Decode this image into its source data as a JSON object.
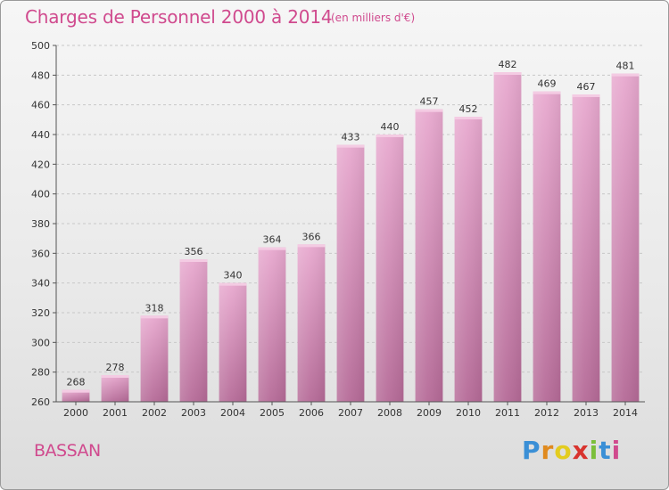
{
  "title": "Charges de Personnel 2000 à 2014",
  "subtitle": "(en milliers d'€)",
  "commune": "BASSAN",
  "brand": {
    "letters": [
      "P",
      "r",
      "o",
      "x",
      "i",
      "t",
      "i"
    ],
    "colors": [
      "#3a8fd6",
      "#e08a1e",
      "#e3cc1f",
      "#d8332e",
      "#7bbf3a",
      "#3a8fd6",
      "#d04a8e"
    ]
  },
  "chart_data": {
    "type": "bar",
    "categories": [
      "2000",
      "2001",
      "2002",
      "2003",
      "2004",
      "2005",
      "2006",
      "2007",
      "2008",
      "2009",
      "2010",
      "2011",
      "2012",
      "2013",
      "2014"
    ],
    "values": [
      268,
      278,
      318,
      356,
      340,
      364,
      366,
      433,
      440,
      457,
      452,
      482,
      469,
      467,
      481
    ],
    "ylim": [
      260,
      500
    ],
    "yticks": [
      260,
      280,
      300,
      320,
      340,
      360,
      380,
      400,
      420,
      440,
      460,
      480,
      500
    ],
    "grid": true,
    "bar_color": "#d97fb2"
  }
}
